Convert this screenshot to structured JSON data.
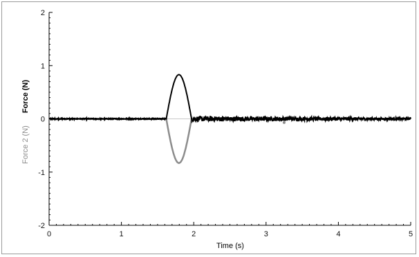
{
  "chart_data": {
    "type": "line",
    "xlabel": "Time (s)",
    "ylabel": "Force (N)",
    "ylabel2": "Force 2 (N)",
    "xlim": [
      0,
      5
    ],
    "ylim": [
      -2,
      2
    ],
    "x_ticks": [
      0,
      1,
      2,
      3,
      4,
      5
    ],
    "y_ticks": [
      -2,
      -1,
      0,
      1,
      2
    ],
    "x_tick_labels": [
      "0",
      "1",
      "2",
      "3",
      "4",
      "5"
    ],
    "y_tick_labels": [
      "-2",
      "-1",
      "0",
      "1",
      "2"
    ],
    "grid": false,
    "series": [
      {
        "name": "Force (N)",
        "color": "#000000",
        "pulse": {
          "start": 1.62,
          "end": 1.97,
          "peak": 0.83
        },
        "noise_after_pulse": {
          "from": 1.97,
          "to": 5.0,
          "amplitude": 0.05
        }
      },
      {
        "name": "Force 2 (N)",
        "color": "#8c8c8c",
        "pulse": {
          "start": 1.62,
          "end": 1.97,
          "peak": -0.83
        }
      }
    ]
  }
}
